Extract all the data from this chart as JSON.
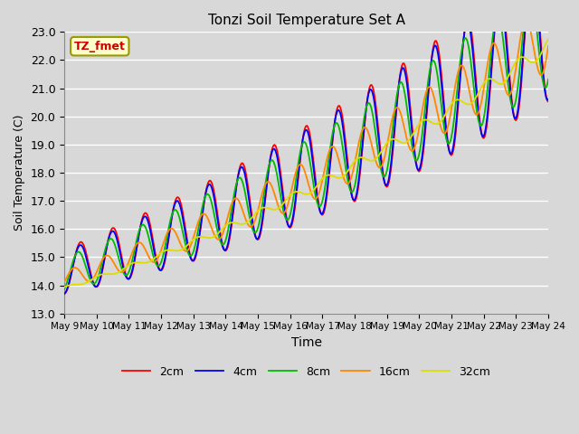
{
  "title": "Tonzi Soil Temperature Set A",
  "xlabel": "Time",
  "ylabel": "Soil Temperature (C)",
  "ylim": [
    13.0,
    23.0
  ],
  "yticks": [
    13.0,
    14.0,
    15.0,
    16.0,
    17.0,
    18.0,
    19.0,
    20.0,
    21.0,
    22.0,
    23.0
  ],
  "xtick_labels": [
    "May 9",
    "May 10",
    "May 11",
    "May 12",
    "May 13",
    "May 14",
    "May 15",
    "May 16",
    "May 17",
    "May 18",
    "May 19",
    "May 20",
    "May 21",
    "May 22",
    "May 23",
    "May 24"
  ],
  "annotation_text": "TZ_fmet",
  "annotation_bg": "#ffffcc",
  "annotation_border": "#999900",
  "annotation_fg": "#cc0000",
  "line_colors": [
    "#ff0000",
    "#0000ff",
    "#00bb00",
    "#ff8800",
    "#dddd00"
  ],
  "line_labels": [
    "2cm",
    "4cm",
    "8cm",
    "16cm",
    "32cm"
  ],
  "fig_bg": "#d8d8d8",
  "plot_bg": "#d8d8d8",
  "grid_color": "#ffffff",
  "n_points": 480
}
